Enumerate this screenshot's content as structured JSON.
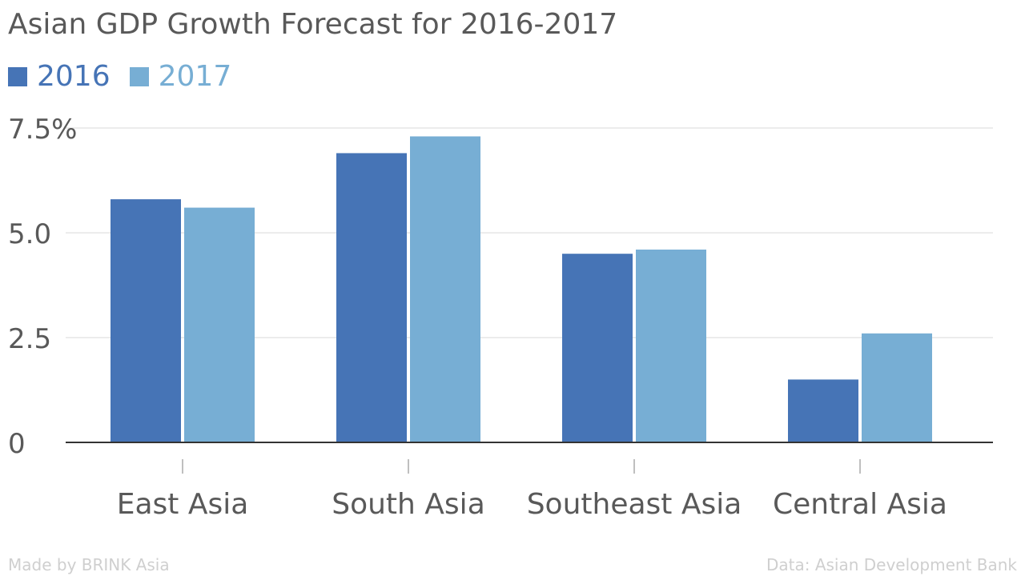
{
  "chart_data": {
    "type": "bar",
    "title": "Asian GDP Growth Forecast for 2016-2017",
    "categories": [
      "East Asia",
      "South Asia",
      "Southeast Asia",
      "Central Asia"
    ],
    "series": [
      {
        "name": "2016",
        "color": "#4674b6",
        "values": [
          5.8,
          6.9,
          4.5,
          1.5
        ]
      },
      {
        "name": "2017",
        "color": "#77aed4",
        "values": [
          5.6,
          7.3,
          4.6,
          2.6
        ]
      }
    ],
    "ylim": [
      0,
      7.5
    ],
    "yticks": [
      0,
      2.5,
      5.0,
      7.5
    ],
    "ytick_labels": [
      "0",
      "2.5",
      "5.0",
      "7.5%"
    ],
    "xlabel": "",
    "ylabel": "",
    "grid": true,
    "legend_position": "top-left"
  },
  "footer": {
    "left": "Made by BRINK Asia",
    "right": "Data: Asian Development Bank"
  }
}
